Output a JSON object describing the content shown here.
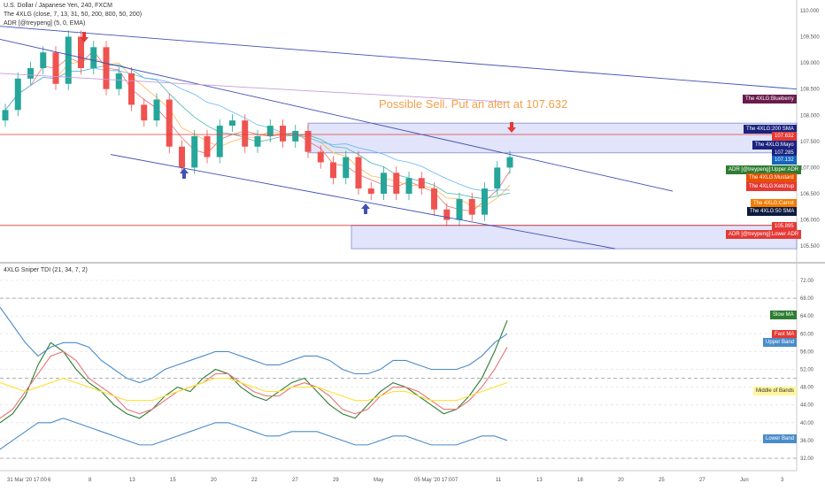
{
  "header": {
    "symbol": "U.S. Dollar / Japanese Yen, 240, FXCM",
    "indicator1": "The 4XLG (close, 7, 13, 31, 50, 200, 800, 50, 200)",
    "indicator2": "ADR [@treypeng] (5, 0, EMA)",
    "pane2_title": "4XLG Sniper TDI (21, 34, 7, 2)"
  },
  "annotation": "Possible Sell. Put an alert at 107.632",
  "colors": {
    "up": "#26a69a",
    "down": "#ef5350",
    "channel": "#3f51b5",
    "zone": "#c9cdf5",
    "hline": "#e53935"
  },
  "price_axis": [
    "110.000",
    "109.500",
    "109.000",
    "108.500",
    "108.000",
    "107.500",
    "107.000",
    "106.500",
    "106.000",
    "105.500"
  ],
  "tdi_axis": [
    "72.00",
    "68.00",
    "64.00",
    "60.00",
    "56.00",
    "52.00",
    "48.00",
    "44.00",
    "40.00",
    "36.00",
    "32.00"
  ],
  "time_axis": [
    "31 Mar '20 17:00",
    "6",
    "8",
    "13",
    "15",
    "20",
    "22",
    "27",
    "29",
    "May",
    "05 May '20 17:00",
    "7",
    "11",
    "13",
    "18",
    "20",
    "25",
    "27",
    "Jun",
    "3"
  ],
  "price_labels": [
    {
      "text": "The 4XLG:Blueberry",
      "bg": "#6a1b4d"
    },
    {
      "text": "The 4XLG:200 SMA",
      "bg": "#1a237e"
    },
    {
      "text": "107.632",
      "bg": "#e53935"
    },
    {
      "text": "The 4XLG:Mayo",
      "bg": "#1a237e"
    },
    {
      "text": "107.285",
      "bg": "#1a237e"
    },
    {
      "text": "107.132",
      "bg": "#1565c0"
    },
    {
      "text": "ADR [@treypeng]:Upper ADR",
      "bg": "#2e7d32"
    },
    {
      "text": "The 4XLG:Mustard",
      "bg": "#e65100"
    },
    {
      "text": "The 4XLG:Ketchup",
      "bg": "#e53935"
    },
    {
      "text": "The 4XLG:Carrot",
      "bg": "#f57c00"
    },
    {
      "text": "The 4XLG:50 SMA",
      "bg": "#0d1b3e"
    },
    {
      "text": "105.895",
      "bg": "#e53935"
    },
    {
      "text": "ADR [@treypeng]:Lower ADR",
      "bg": "#e53935"
    }
  ],
  "tdi_labels": [
    {
      "text": "Slow MA",
      "bg": "#2e7d32"
    },
    {
      "text": "Fast MA",
      "bg": "#e53935"
    },
    {
      "text": "Upper Band",
      "bg": "#4a8cc9"
    },
    {
      "text": "Middle of Bands",
      "bg": "#fff59d",
      "fg": "#333"
    },
    {
      "text": "Lower Band",
      "bg": "#4a8cc9"
    }
  ],
  "chart_data": [
    {
      "type": "candlestick",
      "title": "U.S. Dollar / Japanese Yen, 240, FXCM",
      "ylim": [
        105.3,
        110.1
      ],
      "price_line": 107.632,
      "support_line": 105.895,
      "zone_upper": [
        107.28,
        107.85
      ],
      "zone_lower": [
        105.45,
        105.9
      ],
      "close_series": [
        108.1,
        108.7,
        108.9,
        109.2,
        108.6,
        109.5,
        108.9,
        109.3,
        108.5,
        108.8,
        108.2,
        107.9,
        108.3,
        107.4,
        107.0,
        107.6,
        107.2,
        107.8,
        107.9,
        107.4,
        107.6,
        107.8,
        107.5,
        107.7,
        107.3,
        107.1,
        106.8,
        107.2,
        106.6,
        106.5,
        106.9,
        106.5,
        106.8,
        106.6,
        106.2,
        106.0,
        106.4,
        106.1,
        106.6,
        107.0,
        107.2
      ]
    },
    {
      "type": "line",
      "title": "4XLG Sniper TDI (21, 34, 7, 2)",
      "ylim": [
        30,
        73
      ],
      "series": [
        {
          "name": "Slow MA",
          "values": [
            40,
            42,
            46,
            53,
            58,
            56,
            52,
            49,
            47,
            44,
            42,
            41,
            43,
            46,
            48,
            47,
            50,
            52,
            51,
            48,
            46,
            45,
            47,
            49,
            50,
            47,
            44,
            42,
            41,
            44,
            47,
            49,
            48,
            46,
            44,
            42,
            43,
            46,
            50,
            56,
            63
          ]
        },
        {
          "name": "Fast MA",
          "values": [
            41,
            43,
            47,
            51,
            55,
            56,
            54,
            50,
            48,
            46,
            43,
            42,
            43,
            45,
            47,
            48,
            49,
            51,
            51,
            49,
            47,
            46,
            46,
            48,
            49,
            48,
            46,
            43,
            42,
            43,
            46,
            48,
            48,
            47,
            45,
            43,
            43,
            45,
            48,
            52,
            57
          ]
        },
        {
          "name": "Upper Band",
          "values": [
            66,
            62,
            58,
            55,
            57,
            58,
            58,
            57,
            54,
            52,
            50,
            49,
            50,
            52,
            53,
            54,
            55,
            56,
            56,
            55,
            54,
            53,
            53,
            54,
            55,
            55,
            54,
            52,
            51,
            51,
            52,
            54,
            54,
            53,
            52,
            52,
            52,
            53,
            55,
            58,
            60
          ]
        },
        {
          "name": "Middle of Bands",
          "values": [
            49,
            48,
            47,
            48,
            49,
            50,
            49,
            48,
            47,
            46,
            45,
            45,
            45,
            46,
            47,
            48,
            49,
            50,
            50,
            49,
            48,
            47,
            47,
            48,
            48,
            48,
            47,
            46,
            45,
            45,
            46,
            47,
            47,
            46,
            45,
            45,
            45,
            46,
            47,
            48,
            49
          ]
        },
        {
          "name": "Lower Band",
          "values": [
            34,
            36,
            38,
            40,
            40,
            41,
            40,
            39,
            38,
            37,
            36,
            35,
            35,
            36,
            37,
            38,
            39,
            40,
            40,
            39,
            38,
            37,
            37,
            38,
            38,
            38,
            37,
            36,
            35,
            35,
            36,
            37,
            37,
            36,
            35,
            35,
            35,
            36,
            37,
            37,
            36
          ]
        }
      ]
    }
  ]
}
